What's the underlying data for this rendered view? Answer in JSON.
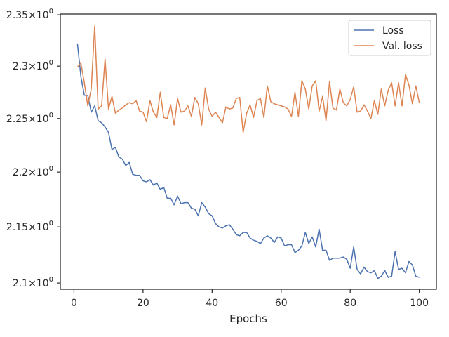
{
  "chart_data": {
    "type": "line",
    "title": "",
    "xlabel": "Epochs",
    "ylabel": "",
    "xlim": [
      -3.95,
      104.95
    ],
    "ylim": [
      2.0945,
      2.3508
    ],
    "y_scale": "log",
    "grid": false,
    "legend_placement": "top-right",
    "x_ticks": [
      0,
      20,
      40,
      60,
      80,
      100
    ],
    "x_tick_labels": [
      "0",
      "20",
      "40",
      "60",
      "80",
      "100"
    ],
    "y_ticks": [
      2.1,
      2.15,
      2.2,
      2.25,
      2.3,
      2.35
    ],
    "y_tick_labels": [
      {
        "mantissa": "2.1",
        "base": "10",
        "exp": "0"
      },
      {
        "mantissa": "2.15",
        "base": "10",
        "exp": "0"
      },
      {
        "mantissa": "2.2",
        "base": "10",
        "exp": "0"
      },
      {
        "mantissa": "2.25",
        "base": "10",
        "exp": "0"
      },
      {
        "mantissa": "2.3",
        "base": "10",
        "exp": "0"
      },
      {
        "mantissa": "2.35",
        "base": "10",
        "exp": "0"
      }
    ],
    "x": [
      1,
      2,
      3,
      4,
      5,
      6,
      7,
      8,
      9,
      10,
      11,
      12,
      13,
      14,
      15,
      16,
      17,
      18,
      19,
      20,
      21,
      22,
      23,
      24,
      25,
      26,
      27,
      28,
      29,
      30,
      31,
      32,
      33,
      34,
      35,
      36,
      37,
      38,
      39,
      40,
      41,
      42,
      43,
      44,
      45,
      46,
      47,
      48,
      49,
      50,
      51,
      52,
      53,
      54,
      55,
      56,
      57,
      58,
      59,
      60,
      61,
      62,
      63,
      64,
      65,
      66,
      67,
      68,
      69,
      70,
      71,
      72,
      73,
      74,
      75,
      76,
      77,
      78,
      79,
      80,
      81,
      82,
      83,
      84,
      85,
      86,
      87,
      88,
      89,
      90,
      91,
      92,
      93,
      94,
      95,
      96,
      97,
      98,
      99,
      100
    ],
    "series": [
      {
        "name": "Loss",
        "color": "#4c72b0",
        "values": [
          2.322,
          2.29,
          2.272,
          2.272,
          2.256,
          2.262,
          2.248,
          2.246,
          2.242,
          2.237,
          2.221,
          2.223,
          2.214,
          2.212,
          2.206,
          2.209,
          2.198,
          2.197,
          2.197,
          2.192,
          2.191,
          2.193,
          2.188,
          2.19,
          2.184,
          2.186,
          2.176,
          2.176,
          2.17,
          2.178,
          2.171,
          2.172,
          2.172,
          2.167,
          2.166,
          2.16,
          2.172,
          2.168,
          2.162,
          2.16,
          2.153,
          2.15,
          2.149,
          2.151,
          2.152,
          2.148,
          2.143,
          2.142,
          2.145,
          2.145,
          2.14,
          2.138,
          2.137,
          2.135,
          2.14,
          2.142,
          2.14,
          2.136,
          2.141,
          2.14,
          2.133,
          2.134,
          2.134,
          2.127,
          2.129,
          2.133,
          2.145,
          2.135,
          2.141,
          2.132,
          2.148,
          2.129,
          2.129,
          2.12,
          2.122,
          2.122,
          2.122,
          2.123,
          2.121,
          2.113,
          2.132,
          2.112,
          2.108,
          2.114,
          2.11,
          2.109,
          2.111,
          2.104,
          2.106,
          2.111,
          2.105,
          2.106,
          2.128,
          2.112,
          2.113,
          2.109,
          2.119,
          2.116,
          2.106,
          2.105
        ]
      },
      {
        "name": "Val. loss",
        "color": "#dd8452",
        "values": [
          2.299,
          2.303,
          2.284,
          2.262,
          2.278,
          2.339,
          2.259,
          2.262,
          2.307,
          2.259,
          2.271,
          2.255,
          2.258,
          2.26,
          2.263,
          2.265,
          2.264,
          2.267,
          2.257,
          2.256,
          2.247,
          2.267,
          2.256,
          2.251,
          2.275,
          2.251,
          2.25,
          2.263,
          2.244,
          2.269,
          2.256,
          2.257,
          2.262,
          2.252,
          2.27,
          2.264,
          2.244,
          2.279,
          2.259,
          2.252,
          2.256,
          2.251,
          2.246,
          2.261,
          2.259,
          2.26,
          2.269,
          2.27,
          2.237,
          2.255,
          2.263,
          2.251,
          2.267,
          2.269,
          2.251,
          2.281,
          2.266,
          2.264,
          2.263,
          2.262,
          2.261,
          2.259,
          2.252,
          2.275,
          2.252,
          2.286,
          2.278,
          2.259,
          2.281,
          2.286,
          2.257,
          2.271,
          2.248,
          2.285,
          2.26,
          2.258,
          2.278,
          2.265,
          2.262,
          2.268,
          2.28,
          2.256,
          2.257,
          2.263,
          2.257,
          2.25,
          2.267,
          2.254,
          2.278,
          2.262,
          2.277,
          2.284,
          2.262,
          2.284,
          2.262,
          2.292,
          2.282,
          2.264,
          2.281,
          2.265
        ]
      }
    ]
  }
}
